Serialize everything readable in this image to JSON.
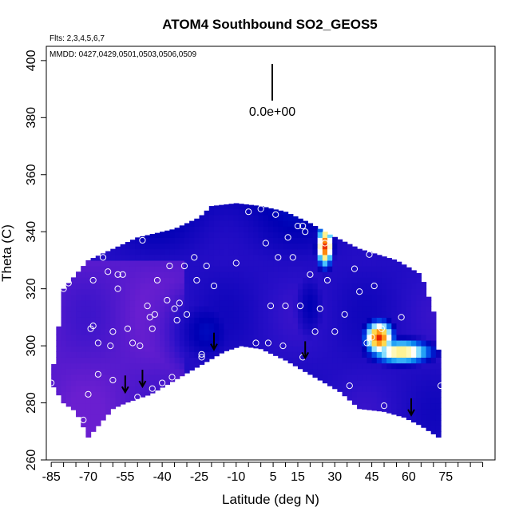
{
  "chart_data": {
    "type": "heatmap",
    "title": "ATOM4 Southbound SO2_GEOS5",
    "annotations": {
      "flights": "Flts: 2,3,4,5,6,7",
      "dates": "MMDD: 0427,0429,0501,0503,0506,0509",
      "scale_value": "0.0e+00"
    },
    "xlabel": "Latitude (deg N)",
    "ylabel": "Theta (C)",
    "xlim": [
      -87,
      95
    ],
    "ylim": [
      260,
      405
    ],
    "x_ticks": [
      -85,
      -70,
      -55,
      -40,
      -25,
      -10,
      5,
      15,
      30,
      45,
      60,
      75
    ],
    "y_ticks": [
      260,
      280,
      300,
      320,
      340,
      360,
      380,
      400
    ],
    "grid": false,
    "colormap": [
      "#6a1fd0",
      "#2a10c8",
      "#0000b4",
      "#0030e0",
      "#0a8cf0",
      "#5cd2ff",
      "#ffffff",
      "#fff59a",
      "#ffd23a",
      "#ff8c10",
      "#e61e00"
    ],
    "field_top": [
      [
        -85,
        287
      ],
      [
        -80,
        320
      ],
      [
        -70,
        330
      ],
      [
        -50,
        338
      ],
      [
        -35,
        341
      ],
      [
        -25,
        345
      ],
      [
        -20,
        349
      ],
      [
        -10,
        350
      ],
      [
        0,
        349
      ],
      [
        10,
        347
      ],
      [
        20,
        343
      ],
      [
        28,
        339
      ],
      [
        40,
        334
      ],
      [
        55,
        330
      ],
      [
        65,
        325
      ],
      [
        70,
        312
      ],
      [
        73,
        292
      ],
      [
        72,
        268
      ]
    ],
    "field_bottom": [
      [
        -85,
        287
      ],
      [
        -80,
        280
      ],
      [
        -75,
        277
      ],
      [
        -70,
        268
      ],
      [
        -60,
        278
      ],
      [
        -55,
        280
      ],
      [
        -45,
        283
      ],
      [
        -35,
        288
      ],
      [
        -25,
        293
      ],
      [
        -15,
        298
      ],
      [
        -8,
        300
      ],
      [
        0,
        299
      ],
      [
        10,
        295
      ],
      [
        20,
        290
      ],
      [
        32,
        284
      ],
      [
        40,
        278
      ],
      [
        50,
        277
      ],
      [
        58,
        275
      ],
      [
        65,
        272
      ],
      [
        72,
        268
      ]
    ],
    "background_level": 0.12,
    "hotspots": [
      {
        "x": 26,
        "y": 335,
        "level": 0.98,
        "sx": 2.2,
        "sy": 5
      },
      {
        "x": 48,
        "y": 303,
        "level": 1.0,
        "sx": 4,
        "sy": 4
      },
      {
        "x": 57,
        "y": 298,
        "level": 0.75,
        "sx": 9,
        "sy": 3
      },
      {
        "x": 20,
        "y": 314,
        "level": 0.2,
        "sx": 5,
        "sy": 10
      },
      {
        "x": -22,
        "y": 305,
        "level": 0.22,
        "sx": 10,
        "sy": 10
      }
    ],
    "sample_points": [
      [
        -85,
        287
      ],
      [
        -80,
        320
      ],
      [
        -78,
        322
      ],
      [
        -72,
        274
      ],
      [
        -70,
        283
      ],
      [
        -69,
        306
      ],
      [
        -68,
        307
      ],
      [
        -68,
        323
      ],
      [
        -66,
        301
      ],
      [
        -66,
        290
      ],
      [
        -64,
        331
      ],
      [
        -62,
        326
      ],
      [
        -61,
        300
      ],
      [
        -60,
        288
      ],
      [
        -60,
        305
      ],
      [
        -58,
        320
      ],
      [
        -58,
        325
      ],
      [
        -56,
        325
      ],
      [
        -54,
        306
      ],
      [
        -52,
        301
      ],
      [
        -50,
        282
      ],
      [
        -49,
        300
      ],
      [
        -48,
        337
      ],
      [
        -46,
        314
      ],
      [
        -45,
        310
      ],
      [
        -44,
        306
      ],
      [
        -44,
        285
      ],
      [
        -43,
        311
      ],
      [
        -42,
        323
      ],
      [
        -40,
        287
      ],
      [
        -38,
        316
      ],
      [
        -37,
        328
      ],
      [
        -36,
        289
      ],
      [
        -35,
        313
      ],
      [
        -34,
        309
      ],
      [
        -33,
        315
      ],
      [
        -31,
        328
      ],
      [
        -30,
        311
      ],
      [
        -27,
        331
      ],
      [
        -26,
        323
      ],
      [
        -24,
        296
      ],
      [
        -24,
        297
      ],
      [
        -22,
        328
      ],
      [
        -19,
        321
      ],
      [
        -10,
        329
      ],
      [
        -5,
        347
      ],
      [
        -2,
        301
      ],
      [
        0,
        348
      ],
      [
        2,
        336
      ],
      [
        3,
        301
      ],
      [
        4,
        314
      ],
      [
        6,
        346
      ],
      [
        7,
        331
      ],
      [
        9,
        300
      ],
      [
        10,
        314
      ],
      [
        11,
        338
      ],
      [
        13,
        331
      ],
      [
        15,
        342
      ],
      [
        16,
        314
      ],
      [
        17,
        296
      ],
      [
        17,
        342
      ],
      [
        18,
        340
      ],
      [
        20,
        325
      ],
      [
        22,
        305
      ],
      [
        24,
        313
      ],
      [
        26,
        336
      ],
      [
        27,
        323
      ],
      [
        30,
        305
      ],
      [
        34,
        311
      ],
      [
        36,
        286
      ],
      [
        38,
        327
      ],
      [
        40,
        319
      ],
      [
        43,
        301
      ],
      [
        44,
        332
      ],
      [
        45,
        303
      ],
      [
        46,
        321
      ],
      [
        49,
        306
      ],
      [
        50,
        279
      ],
      [
        51,
        334
      ],
      [
        57,
        310
      ],
      [
        62,
        329
      ],
      [
        73,
        286
      ]
    ],
    "arrows": [
      [
        -55,
        284
      ],
      [
        -48,
        286
      ],
      [
        -19,
        299
      ],
      [
        18,
        296
      ],
      [
        61,
        276
      ]
    ]
  }
}
